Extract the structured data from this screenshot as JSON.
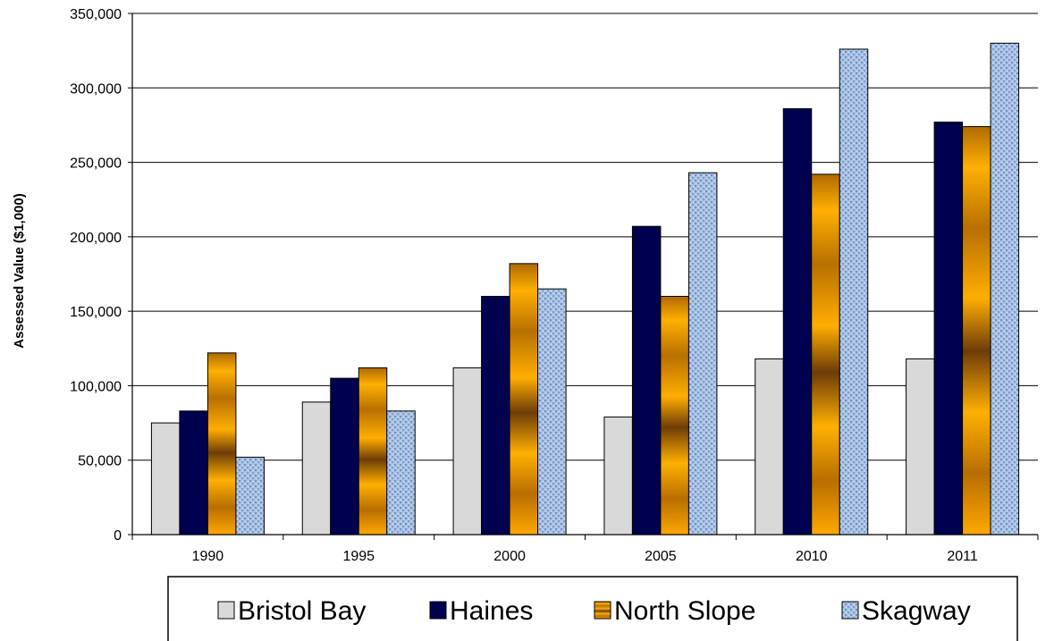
{
  "chart_data": {
    "type": "bar",
    "title": "",
    "xlabel": "",
    "ylabel": "Assessed Value ($1,000)",
    "ylim": [
      0,
      350000
    ],
    "yticks": [
      "0",
      "50,000",
      "100,000",
      "150,000",
      "200,000",
      "250,000",
      "300,000",
      "350,000"
    ],
    "grid": true,
    "legend_position": "bottom",
    "categories": [
      "1990",
      "1995",
      "2000",
      "2005",
      "2010",
      "2011"
    ],
    "series": [
      {
        "name": "Bristol Bay",
        "color": "#d9d9d9",
        "values": [
          75000,
          89000,
          112000,
          79000,
          118000,
          118000
        ]
      },
      {
        "name": "Haines",
        "color": "#000050",
        "values": [
          83000,
          105000,
          160000,
          207000,
          286000,
          277000
        ]
      },
      {
        "name": "North Slope",
        "color": "#f0a000",
        "values": [
          122000,
          112000,
          182000,
          160000,
          242000,
          274000
        ]
      },
      {
        "name": "Skagway",
        "color": "#a8c0e0",
        "values": [
          52000,
          83000,
          165000,
          243000,
          326000,
          330000
        ]
      }
    ]
  }
}
